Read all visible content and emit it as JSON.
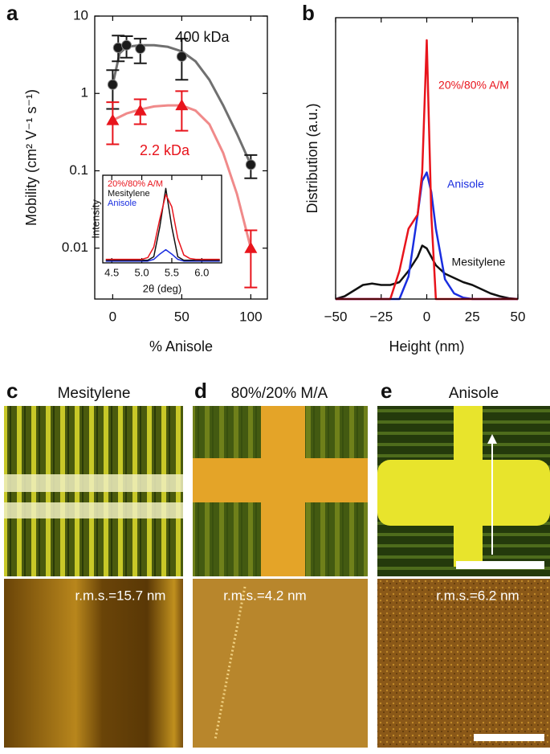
{
  "chart_data": [
    {
      "type": "scatter",
      "label": "a",
      "ylabel": "Mobility (cm² V⁻¹ s⁻¹)",
      "xlabel": "% Anisole",
      "xlim": [
        -13,
        112
      ],
      "xticks": [
        0,
        50,
        100
      ],
      "ylim": [
        0.0022,
        10
      ],
      "yticks": [
        10,
        1,
        0.1,
        0.01
      ],
      "ylog": true,
      "series": [
        {
          "name": "400 kDa",
          "color": "#1a1a1a",
          "marker": "circle",
          "x": [
            0,
            4,
            10,
            20,
            50,
            100
          ],
          "values": [
            1.3,
            3.9,
            4.2,
            3.8,
            3.0,
            0.12
          ],
          "err_plus": [
            0.7,
            1.7,
            1.3,
            1.3,
            2.1,
            0.04
          ],
          "err_minus": [
            0.67,
            1.3,
            1.3,
            1.35,
            1.5,
            0.04
          ],
          "fit": {
            "color": "#707070",
            "x": [
              0,
              5,
              10,
              20,
              30,
              40,
              50,
              60,
              70,
              80,
              90,
              100
            ],
            "values": [
              1.3,
              3.3,
              4.0,
              4.2,
              4.2,
              4.0,
              3.5,
              2.6,
              1.5,
              0.7,
              0.3,
              0.12
            ]
          }
        },
        {
          "name": "2.2 kDa",
          "color": "#e8141c",
          "marker": "triangle",
          "x": [
            0,
            20,
            50,
            100
          ],
          "values": [
            0.45,
            0.6,
            0.7,
            0.01
          ],
          "err_plus": [
            0.32,
            0.24,
            0.37,
            0.007
          ],
          "err_minus": [
            0.23,
            0.2,
            0.37,
            0.0069
          ],
          "fit": {
            "color": "#f08a8a",
            "x": [
              0,
              10,
              20,
              30,
              40,
              50,
              60,
              70,
              80,
              90,
              100
            ],
            "values": [
              0.45,
              0.55,
              0.62,
              0.68,
              0.7,
              0.7,
              0.6,
              0.4,
              0.17,
              0.05,
              0.01
            ]
          }
        }
      ]
    },
    {
      "type": "line",
      "ylabel": "Intensity",
      "xlabel": "2θ (deg)",
      "xlim": [
        4.35,
        6.33
      ],
      "xticks": [
        4.5,
        {
          "value": 5.0,
          "label": "5.0"
        },
        5.5,
        {
          "value": 6.0,
          "label": "6.0"
        }
      ],
      "ylim": [
        0,
        1
      ],
      "x": [
        4.4,
        4.5,
        4.6,
        4.7,
        4.8,
        4.9,
        5.0,
        5.1,
        5.2,
        5.3,
        5.4,
        5.5,
        5.6,
        5.7,
        5.8,
        5.9,
        6.0,
        6.1,
        6.2,
        6.3
      ],
      "series": [
        {
          "name": "20%/80% A/M",
          "color": "#e8141c",
          "values": [
            0.04,
            0.04,
            0.04,
            0.04,
            0.04,
            0.04,
            0.04,
            0.06,
            0.18,
            0.5,
            0.78,
            0.64,
            0.28,
            0.09,
            0.05,
            0.04,
            0.04,
            0.04,
            0.04,
            0.04
          ]
        },
        {
          "name": "Mesitylene",
          "color": "#111111",
          "values": [
            0.03,
            0.03,
            0.03,
            0.03,
            0.03,
            0.03,
            0.03,
            0.03,
            0.07,
            0.41,
            0.85,
            0.41,
            0.07,
            0.03,
            0.03,
            0.03,
            0.03,
            0.03,
            0.03,
            0.03
          ]
        },
        {
          "name": "Anisole",
          "color": "#1a2ee0",
          "values": [
            0.02,
            0.02,
            0.02,
            0.02,
            0.02,
            0.02,
            0.02,
            0.02,
            0.04,
            0.1,
            0.15,
            0.1,
            0.04,
            0.02,
            0.02,
            0.02,
            0.02,
            0.02,
            0.02,
            0.02
          ]
        }
      ]
    },
    {
      "type": "line",
      "label": "b",
      "ylabel": "Distribution (a.u.)",
      "xlabel": "Height (nm)",
      "xlim": [
        -50,
        50
      ],
      "xticks": [
        {
          "value": -50,
          "label": "−50"
        },
        {
          "value": -25,
          "label": "−25"
        },
        0,
        25,
        50
      ],
      "ylim": [
        0,
        1
      ],
      "x": [
        -50,
        -45,
        -40,
        -35,
        -30,
        -25,
        -20,
        -15,
        -10,
        -5,
        -2.5,
        0,
        2.5,
        5,
        10,
        15,
        20,
        25,
        30,
        35,
        40,
        45,
        50
      ],
      "series": [
        {
          "name": "20%/80% A/M",
          "color": "#e8141c",
          "values": [
            0,
            0,
            0,
            0,
            0,
            0,
            0,
            0.1,
            0.25,
            0.3,
            0.45,
            0.92,
            0.3,
            0,
            0,
            0,
            0,
            0,
            0,
            0,
            0,
            0,
            0
          ]
        },
        {
          "name": "Anisole",
          "color": "#1a2ee0",
          "values": [
            0,
            0,
            0,
            0,
            0,
            0,
            0,
            0,
            0.08,
            0.3,
            0.42,
            0.45,
            0.38,
            0.25,
            0.07,
            0.02,
            0.005,
            0,
            0,
            0,
            0,
            0,
            0
          ]
        },
        {
          "name": "Mesitylene",
          "color": "#111111",
          "values": [
            0,
            0.01,
            0.03,
            0.05,
            0.055,
            0.05,
            0.05,
            0.06,
            0.1,
            0.15,
            0.19,
            0.18,
            0.15,
            0.12,
            0.09,
            0.075,
            0.06,
            0.05,
            0.035,
            0.02,
            0.01,
            0.003,
            0
          ]
        }
      ]
    }
  ],
  "images": [
    {
      "label": "c",
      "title": "Mesitylene",
      "rms": "r.m.s.=15.7 nm"
    },
    {
      "label": "d",
      "title": "80%/20% M/A",
      "rms": "r.m.s.=4.2 nm"
    },
    {
      "label": "e",
      "title": "Anisole",
      "rms": "r.m.s.=6.2 nm"
    }
  ]
}
